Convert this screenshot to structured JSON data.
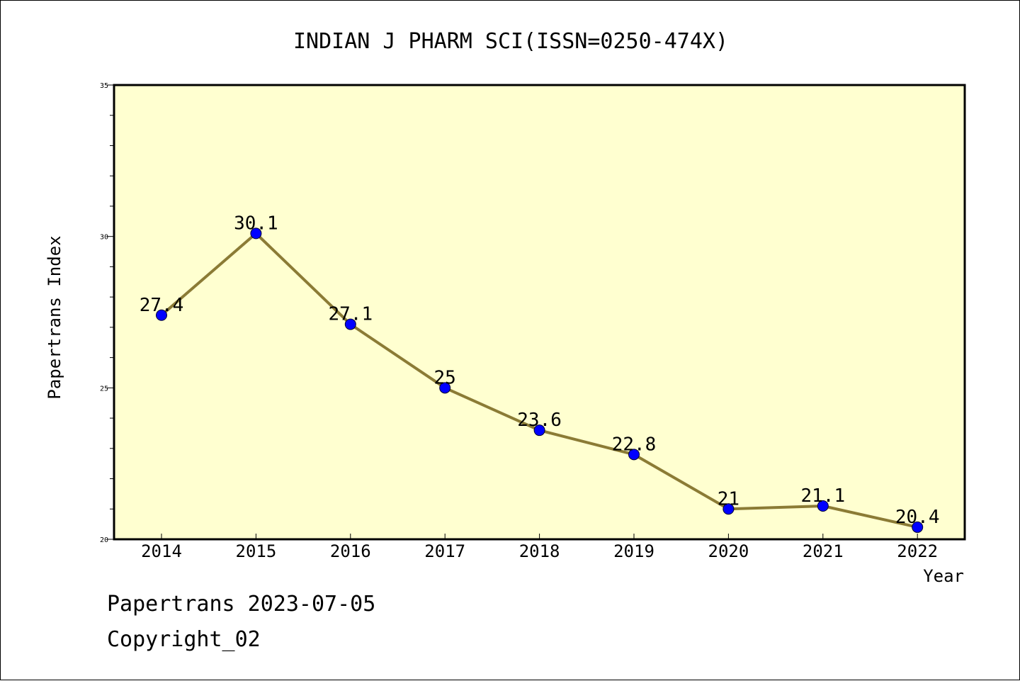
{
  "chart_data": {
    "type": "line",
    "title": "INDIAN J PHARM SCI(ISSN=0250-474X)",
    "xlabel": "Year",
    "ylabel": "Papertrans Index",
    "categories": [
      "2014",
      "2015",
      "2016",
      "2017",
      "2018",
      "2019",
      "2020",
      "2021",
      "2022"
    ],
    "values": [
      27.4,
      30.1,
      27.1,
      25,
      23.6,
      22.8,
      21,
      21.1,
      20.4
    ],
    "value_labels": [
      "27.4",
      "30.1",
      "27.1",
      "25",
      "23.6",
      "22.8",
      "21",
      "21.1",
      "20.4"
    ],
    "ylim": [
      20,
      35
    ],
    "yticks": [
      "20",
      "25",
      "30",
      "35"
    ],
    "grid": false,
    "colors": {
      "plot_background": "#ffffd0",
      "line": "#8b7b35",
      "marker": "#0000ff"
    }
  },
  "footer": {
    "line1": "Papertrans 2023-07-05",
    "line2": "Copyright_02"
  }
}
